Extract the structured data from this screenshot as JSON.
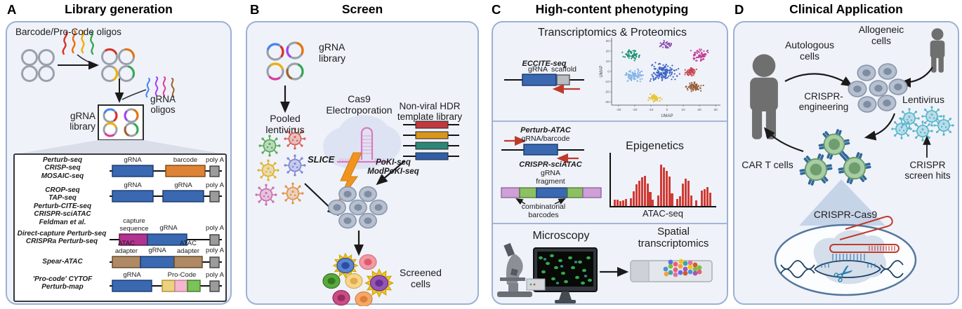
{
  "headers": [
    {
      "label": "A",
      "title": "Library generation"
    },
    {
      "label": "B",
      "title": "Screen"
    },
    {
      "label": "C",
      "title": "High-content phenotyping"
    },
    {
      "label": "D",
      "title": "Clinical Application"
    }
  ],
  "panel_a": {
    "oligos_title": "Barcode/Pro-Code oligos",
    "grna_oligos": "gRNA\noligos",
    "grna_library": "gRNA\nlibrary",
    "constructs": [
      {
        "methods": "Perturb-seq\nCRISP-seq\nMOSAIC-seq",
        "segments": [
          "gRNA",
          "barcode",
          "poly A"
        ]
      },
      {
        "methods": "CROP-seq\nTAP-seq\nPerturb-CITE-seq\nCRISPR-sciATAC\nFeldman et al.",
        "segments": [
          "gRNA",
          "gRNA",
          "poly A"
        ]
      },
      {
        "methods": "Direct-capture Perturb-seq\nCRISPRa Perturb-seq",
        "segments": [
          "capture\nsequence",
          "gRNA",
          "poly A"
        ]
      },
      {
        "methods": "Spear-ATAC",
        "segments": [
          "ATAC\nadapter",
          "gRNA",
          "ATAC\nadapter",
          "poly A"
        ]
      },
      {
        "methods": "'Pro-code' CYTOF\nPerturb-map",
        "segments": [
          "gRNA",
          "Pro-Code",
          "poly A"
        ]
      }
    ]
  },
  "panel_b": {
    "grna_library": "gRNA\nlibrary",
    "pooled_lentivirus": "Pooled\nlentivirus",
    "cas9_electroporation": "Cas9\nElectroporation",
    "slice": "SLICE",
    "poki": "PoKI-seq\nModPoKI-seq",
    "hdr_library": "Non-viral HDR\ntemplate library",
    "screened_cells": "Screened\ncells"
  },
  "panel_c": {
    "transcriptomics_title": "Transcriptomics & Proteomics",
    "eccite": "ECCITE-seq",
    "eccite_grna": "gRNA",
    "eccite_scaffold": "scaffold",
    "epigenetics_title": "Epigenetics",
    "perturb_atac": "Perturb-ATAC",
    "grna_barcode": "gRNA/barcode",
    "crispr_sciatac": "CRISPR-sciATAC",
    "grna_fragment": "gRNA\nfragment",
    "combinatorial": "combinatorial\nbarcodes",
    "atac_seq": "ATAC-seq",
    "microscopy_title": "Microscopy",
    "spatial_title": "Spatial\ntranscriptomics"
  },
  "panel_d": {
    "autologous": "Autologous\ncells",
    "allogeneic": "Allogeneic\ncells",
    "crispr_engineering": "CRISPR-\nengineering",
    "lentivirus": "Lentivirus",
    "car_t": "CAR T cells",
    "screen_hits": "CRISPR\nscreen hits",
    "crispr_cas9": "CRISPR-Cas9"
  },
  "chart_data": [
    {
      "type": "scatter",
      "title": "",
      "xlabel": "UMAP",
      "ylabel": "UMAP",
      "xlim": [
        -33,
        33
      ],
      "ylim": [
        -33,
        33
      ],
      "xticks": [
        -30,
        -20,
        -10,
        0,
        10,
        20,
        30
      ],
      "yticks": [
        30,
        20,
        10,
        0,
        -10,
        -20,
        -30
      ],
      "clusters": [
        {
          "name": "cluster-teal-green",
          "color": "#1d9272",
          "x": -22,
          "y": 17,
          "spread": 4.5,
          "n": 55
        },
        {
          "name": "cluster-purple",
          "color": "#8a52ad",
          "x": -1,
          "y": 26,
          "spread": 3.5,
          "n": 40
        },
        {
          "name": "cluster-magenta",
          "color": "#c23f97",
          "x": 21,
          "y": 16,
          "spread": 5,
          "n": 70
        },
        {
          "name": "cluster-light-blue",
          "color": "#85b5e6",
          "x": -20,
          "y": -4,
          "spread": 5.5,
          "n": 85
        },
        {
          "name": "cluster-blue",
          "color": "#3d63c4",
          "x": -2,
          "y": -1,
          "spread": 8,
          "n": 150
        },
        {
          "name": "cluster-red",
          "color": "#c64450",
          "x": 15,
          "y": 0,
          "spread": 3.5,
          "n": 55
        },
        {
          "name": "cluster-brown",
          "color": "#96603b",
          "x": 17,
          "y": -15,
          "spread": 4.5,
          "n": 75
        },
        {
          "name": "cluster-yellow",
          "color": "#e6c52e",
          "x": -8,
          "y": -26,
          "spread": 3.5,
          "n": 50
        }
      ]
    },
    {
      "type": "bar",
      "title": "",
      "xlabel": "ATAC-seq",
      "ylabel": "",
      "ylim": [
        0,
        100
      ],
      "color": "#cf3a34",
      "values": [
        13,
        13,
        10,
        12,
        14,
        0,
        16,
        30,
        44,
        52,
        58,
        62,
        46,
        28,
        13,
        0,
        22,
        84,
        78,
        72,
        60,
        26,
        0,
        14,
        20,
        46,
        56,
        52,
        22,
        0,
        11,
        0,
        32,
        35,
        38,
        27
      ]
    }
  ],
  "colors": {
    "panel_fill": "#eff2f9",
    "panel_border": "#9db1d4",
    "grna_blue": "#3a69b2",
    "barcode_orange": "#dd8336",
    "polya_gray": "#9b9b9b",
    "capture_magenta": "#b23390",
    "atac_adapter_tan": "#b08a65",
    "procode_yellow": "#ecd27e",
    "procode_pink": "#f2b8ce",
    "procode_green": "#7cc25c",
    "lightning_orange": "#f0941f",
    "atac_bar_red": "#cf3a34",
    "lentivirus_teal": "#5ab6cb",
    "car_t_green": "#a8cda6",
    "cell_gray": "#b6c0cf",
    "person_gray": "#6f6f6f"
  }
}
